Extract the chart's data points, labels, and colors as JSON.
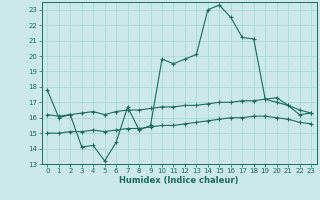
{
  "title": "",
  "xlabel": "Humidex (Indice chaleur)",
  "xlim": [
    -0.5,
    23.5
  ],
  "ylim": [
    13,
    23.5
  ],
  "yticks": [
    13,
    14,
    15,
    16,
    17,
    18,
    19,
    20,
    21,
    22,
    23
  ],
  "xticks": [
    0,
    1,
    2,
    3,
    4,
    5,
    6,
    7,
    8,
    9,
    10,
    11,
    12,
    13,
    14,
    15,
    16,
    17,
    18,
    19,
    20,
    21,
    22,
    23
  ],
  "background_color": "#cce9e9",
  "line_color": "#1a6b5a",
  "grid_color": "#a8d4d4",
  "line1_y": [
    17.8,
    16.0,
    16.2,
    14.1,
    14.2,
    13.2,
    14.4,
    16.7,
    15.2,
    15.5,
    19.8,
    19.5,
    19.8,
    20.1,
    23.0,
    23.3,
    22.5,
    21.2,
    21.1,
    17.2,
    17.3,
    16.8,
    16.2,
    16.3
  ],
  "line2_y": [
    16.2,
    16.1,
    16.2,
    16.3,
    16.4,
    16.2,
    16.4,
    16.5,
    16.5,
    16.6,
    16.7,
    16.7,
    16.8,
    16.8,
    16.9,
    17.0,
    17.0,
    17.1,
    17.1,
    17.2,
    17.0,
    16.8,
    16.5,
    16.3
  ],
  "line3_y": [
    15.0,
    15.0,
    15.1,
    15.1,
    15.2,
    15.1,
    15.2,
    15.3,
    15.3,
    15.4,
    15.5,
    15.5,
    15.6,
    15.7,
    15.8,
    15.9,
    16.0,
    16.0,
    16.1,
    16.1,
    16.0,
    15.9,
    15.7,
    15.6
  ]
}
